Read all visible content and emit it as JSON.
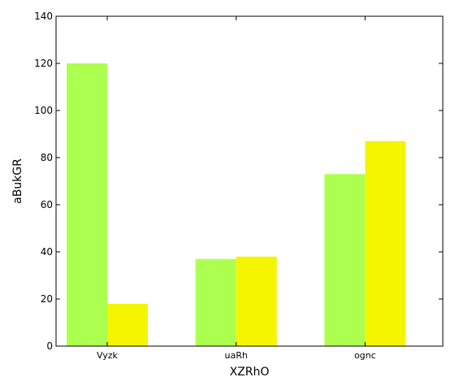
{
  "chart_data": {
    "type": "bar",
    "categories": [
      "Vyzk",
      "uaRh",
      "ognc"
    ],
    "series": [
      {
        "values": [
          120,
          37,
          73
        ],
        "color": "#adff4f"
      },
      {
        "values": [
          18,
          38,
          87
        ],
        "color": "#f5f500"
      }
    ],
    "xlabel": "XZRhO",
    "ylabel": "aBukGR",
    "ylim": [
      0,
      140
    ],
    "yticks": [
      0,
      20,
      40,
      60,
      80,
      100,
      120,
      140
    ],
    "grid": false,
    "legend": "none"
  }
}
